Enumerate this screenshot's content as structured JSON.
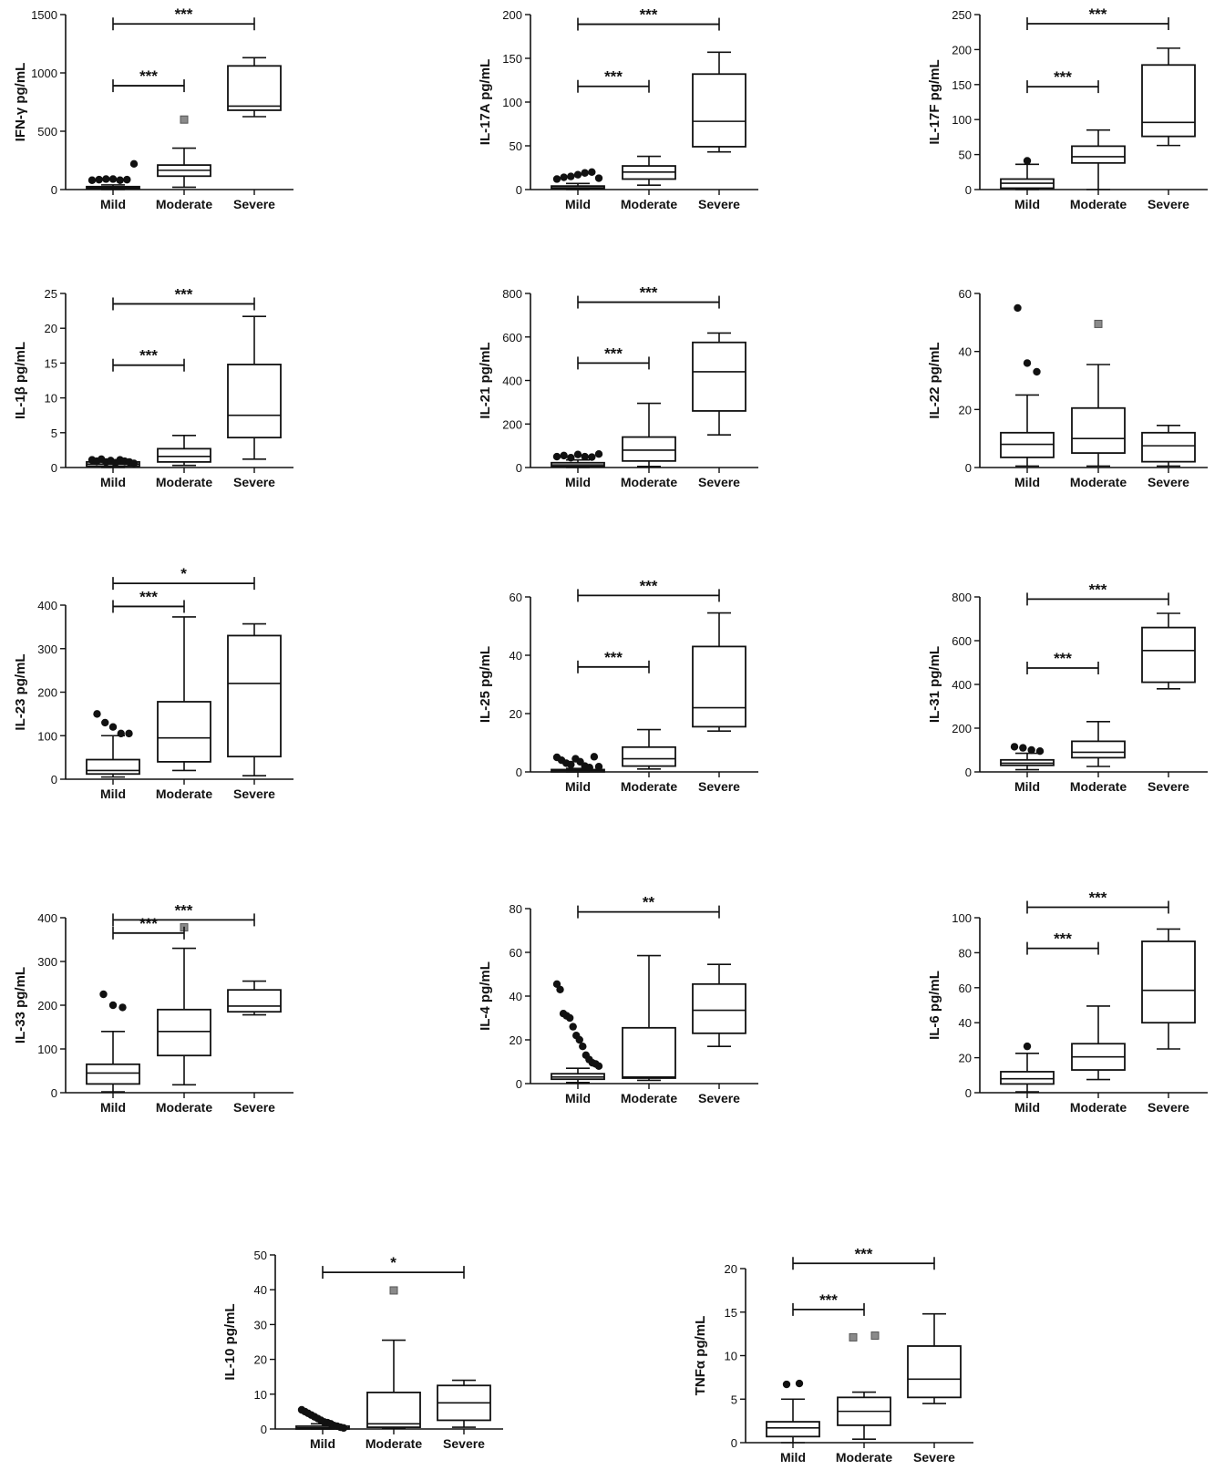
{
  "chart_data": [
    {
      "type": "box",
      "ylabel": "IFN-γ pg/mL",
      "categories": [
        "Mild",
        "Moderate",
        "Severe"
      ],
      "ylim": [
        0,
        1500
      ],
      "yticks": [
        0,
        500,
        1000,
        1500
      ],
      "boxes": [
        {
          "whisker_low": 0,
          "q1": 5,
          "median": 15,
          "q3": 25,
          "whisker_high": 40
        },
        {
          "whisker_low": 20,
          "q1": 115,
          "median": 165,
          "q3": 210,
          "whisker_high": 355
        },
        {
          "whisker_low": 625,
          "q1": 680,
          "median": 715,
          "q3": 1060,
          "whisker_high": 1130
        }
      ],
      "outliers": [
        {
          "cat": 0,
          "values": [
            80,
            85,
            90,
            90,
            80,
            85,
            220
          ],
          "marker": "circle"
        },
        {
          "cat": 1,
          "values": [
            600
          ],
          "marker": "square"
        }
      ],
      "brackets": [
        {
          "from": 0,
          "to": 2,
          "y": 1420,
          "label": "***"
        },
        {
          "from": 0,
          "to": 1,
          "y": 890,
          "label": "***"
        }
      ]
    },
    {
      "type": "box",
      "ylabel": "IL-17A pg/mL",
      "categories": [
        "Mild",
        "Moderate",
        "Severe"
      ],
      "ylim": [
        0,
        200
      ],
      "yticks": [
        0,
        50,
        100,
        150,
        200
      ],
      "boxes": [
        {
          "whisker_low": 0,
          "q1": 1,
          "median": 2,
          "q3": 4,
          "whisker_high": 7
        },
        {
          "whisker_low": 5,
          "q1": 12,
          "median": 20,
          "q3": 27,
          "whisker_high": 38
        },
        {
          "whisker_low": 43,
          "q1": 49,
          "median": 78,
          "q3": 132,
          "whisker_high": 157
        }
      ],
      "outliers": [
        {
          "cat": 0,
          "values": [
            12,
            14,
            15,
            17,
            19,
            20,
            13
          ],
          "marker": "circle"
        }
      ],
      "brackets": [
        {
          "from": 0,
          "to": 2,
          "y": 189,
          "label": "***"
        },
        {
          "from": 0,
          "to": 1,
          "y": 118,
          "label": "***"
        }
      ]
    },
    {
      "type": "box",
      "ylabel": "IL-17F pg/mL",
      "categories": [
        "Mild",
        "Moderate",
        "Severe"
      ],
      "ylim": [
        0,
        250
      ],
      "yticks": [
        0,
        50,
        100,
        150,
        200,
        250
      ],
      "boxes": [
        {
          "whisker_low": 0,
          "q1": 2,
          "median": 9,
          "q3": 15,
          "whisker_high": 36
        },
        {
          "whisker_low": 0,
          "q1": 38,
          "median": 47,
          "q3": 62,
          "whisker_high": 85
        },
        {
          "whisker_low": 63,
          "q1": 76,
          "median": 96,
          "q3": 178,
          "whisker_high": 202
        }
      ],
      "outliers": [
        {
          "cat": 0,
          "values": [
            41
          ],
          "marker": "circle"
        }
      ],
      "brackets": [
        {
          "from": 0,
          "to": 2,
          "y": 237,
          "label": "***"
        },
        {
          "from": 0,
          "to": 1,
          "y": 147,
          "label": "***"
        }
      ]
    },
    {
      "type": "box",
      "ylabel": "IL-1β pg/mL",
      "categories": [
        "Mild",
        "Moderate",
        "Severe"
      ],
      "ylim": [
        0,
        25
      ],
      "yticks": [
        0,
        5,
        10,
        15,
        20,
        25
      ],
      "boxes": [
        {
          "whisker_low": 0,
          "q1": 0.2,
          "median": 0.5,
          "q3": 0.8,
          "whisker_high": 1.0
        },
        {
          "whisker_low": 0.3,
          "q1": 0.8,
          "median": 1.6,
          "q3": 2.7,
          "whisker_high": 4.6
        },
        {
          "whisker_low": 1.2,
          "q1": 4.3,
          "median": 7.5,
          "q3": 14.8,
          "whisker_high": 21.7
        }
      ],
      "outliers": [
        {
          "cat": 0,
          "values": [
            1.1,
            0.9,
            1.2,
            0.8,
            1.0,
            0.7,
            1.1,
            0.9,
            0.8,
            0.6
          ],
          "marker": "circle"
        }
      ],
      "brackets": [
        {
          "from": 0,
          "to": 2,
          "y": 23.5,
          "label": "***"
        },
        {
          "from": 0,
          "to": 1,
          "y": 14.7,
          "label": "***"
        }
      ]
    },
    {
      "type": "box",
      "ylabel": "IL-21 pg/mL",
      "categories": [
        "Mild",
        "Moderate",
        "Severe"
      ],
      "ylim": [
        0,
        800
      ],
      "yticks": [
        0,
        200,
        400,
        600,
        800
      ],
      "boxes": [
        {
          "whisker_low": 0,
          "q1": 5,
          "median": 12,
          "q3": 22,
          "whisker_high": 35
        },
        {
          "whisker_low": 5,
          "q1": 30,
          "median": 80,
          "q3": 140,
          "whisker_high": 295
        },
        {
          "whisker_low": 150,
          "q1": 260,
          "median": 440,
          "q3": 575,
          "whisker_high": 618
        }
      ],
      "outliers": [
        {
          "cat": 0,
          "values": [
            50,
            55,
            45,
            60,
            50,
            48,
            62
          ],
          "marker": "circle"
        }
      ],
      "brackets": [
        {
          "from": 0,
          "to": 2,
          "y": 760,
          "label": "***"
        },
        {
          "from": 0,
          "to": 1,
          "y": 480,
          "label": "***"
        }
      ]
    },
    {
      "type": "box",
      "ylabel": "IL-22 pg/mL",
      "categories": [
        "Mild",
        "Moderate",
        "Severe"
      ],
      "ylim": [
        0,
        60
      ],
      "yticks": [
        0,
        20,
        40,
        60
      ],
      "boxes": [
        {
          "whisker_low": 0.5,
          "q1": 3.5,
          "median": 8,
          "q3": 12,
          "whisker_high": 25
        },
        {
          "whisker_low": 0.5,
          "q1": 5,
          "median": 10,
          "q3": 20.5,
          "whisker_high": 35.5
        },
        {
          "whisker_low": 0.5,
          "q1": 2,
          "median": 7.5,
          "q3": 12,
          "whisker_high": 14.5
        }
      ],
      "outliers": [
        {
          "cat": 0,
          "values": [
            55,
            36,
            33
          ],
          "marker": "circle"
        },
        {
          "cat": 1,
          "values": [
            49.5
          ],
          "marker": "square"
        }
      ],
      "brackets": []
    },
    {
      "type": "box",
      "ylabel": "IL-23 pg/mL",
      "categories": [
        "Mild",
        "Moderate",
        "Severe"
      ],
      "ylim": [
        0,
        400
      ],
      "yticks": [
        0,
        100,
        200,
        300,
        400
      ],
      "boxes": [
        {
          "whisker_low": 5,
          "q1": 12,
          "median": 20,
          "q3": 45,
          "whisker_high": 100
        },
        {
          "whisker_low": 20,
          "q1": 40,
          "median": 95,
          "q3": 178,
          "whisker_high": 373
        },
        {
          "whisker_low": 8,
          "q1": 52,
          "median": 220,
          "q3": 330,
          "whisker_high": 357
        }
      ],
      "outliers": [
        {
          "cat": 0,
          "values": [
            150,
            130,
            120,
            105,
            105
          ],
          "marker": "circle"
        }
      ],
      "brackets": [
        {
          "from": 0,
          "to": 2,
          "y": 450,
          "label": "*"
        },
        {
          "from": 0,
          "to": 1,
          "y": 397,
          "label": "***"
        }
      ]
    },
    {
      "type": "box",
      "ylabel": "IL-25 pg/mL",
      "categories": [
        "Mild",
        "Moderate",
        "Severe"
      ],
      "ylim": [
        0,
        60
      ],
      "yticks": [
        0,
        20,
        40,
        60
      ],
      "boxes": [
        {
          "whisker_low": 0,
          "q1": 0.2,
          "median": 0.5,
          "q3": 0.8,
          "whisker_high": 1.2
        },
        {
          "whisker_low": 1,
          "q1": 2,
          "median": 4.5,
          "q3": 8.5,
          "whisker_high": 14.5
        },
        {
          "whisker_low": 14,
          "q1": 15.5,
          "median": 22,
          "q3": 43,
          "whisker_high": 54.5
        }
      ],
      "outliers": [
        {
          "cat": 0,
          "values": [
            5,
            4,
            3,
            2.5,
            4.5,
            3.5,
            2,
            1.5,
            5.2,
            1.8
          ],
          "marker": "circle"
        }
      ],
      "brackets": [
        {
          "from": 0,
          "to": 2,
          "y": 60.5,
          "label": "***"
        },
        {
          "from": 0,
          "to": 1,
          "y": 36,
          "label": "***"
        }
      ]
    },
    {
      "type": "box",
      "ylabel": "IL-31 pg/mL",
      "categories": [
        "Mild",
        "Moderate",
        "Severe"
      ],
      "ylim": [
        0,
        800
      ],
      "yticks": [
        0,
        200,
        400,
        600,
        800
      ],
      "boxes": [
        {
          "whisker_low": 10,
          "q1": 30,
          "median": 40,
          "q3": 55,
          "whisker_high": 85
        },
        {
          "whisker_low": 25,
          "q1": 65,
          "median": 90,
          "q3": 140,
          "whisker_high": 230
        },
        {
          "whisker_low": 380,
          "q1": 410,
          "median": 555,
          "q3": 660,
          "whisker_high": 725
        }
      ],
      "outliers": [
        {
          "cat": 0,
          "values": [
            115,
            110,
            100,
            95
          ],
          "marker": "circle"
        }
      ],
      "brackets": [
        {
          "from": 0,
          "to": 2,
          "y": 790,
          "label": "***"
        },
        {
          "from": 0,
          "to": 1,
          "y": 475,
          "label": "***"
        }
      ]
    },
    {
      "type": "box",
      "ylabel": "IL-33 pg/mL",
      "categories": [
        "Mild",
        "Moderate",
        "Severe"
      ],
      "ylim": [
        0,
        400
      ],
      "yticks": [
        0,
        100,
        200,
        300,
        400
      ],
      "boxes": [
        {
          "whisker_low": 2,
          "q1": 20,
          "median": 45,
          "q3": 65,
          "whisker_high": 140
        },
        {
          "whisker_low": 18,
          "q1": 85,
          "median": 140,
          "q3": 190,
          "whisker_high": 330
        },
        {
          "whisker_low": 178,
          "q1": 185,
          "median": 198,
          "q3": 235,
          "whisker_high": 255
        }
      ],
      "outliers": [
        {
          "cat": 0,
          "values": [
            225,
            200,
            195
          ],
          "marker": "circle"
        },
        {
          "cat": 1,
          "values": [
            378
          ],
          "marker": "square"
        }
      ],
      "brackets": [
        {
          "from": 0,
          "to": 2,
          "y": 395,
          "label": "***"
        },
        {
          "from": 0,
          "to": 1,
          "y": 365,
          "label": "***"
        }
      ]
    },
    {
      "type": "box",
      "ylabel": "IL-4 pg/mL",
      "categories": [
        "Mild",
        "Moderate",
        "Severe"
      ],
      "ylim": [
        0,
        80
      ],
      "yticks": [
        0,
        20,
        40,
        60,
        80
      ],
      "boxes": [
        {
          "whisker_low": 0.5,
          "q1": 2,
          "median": 3,
          "q3": 4.5,
          "whisker_high": 7
        },
        {
          "whisker_low": 1.5,
          "q1": 2.5,
          "median": 3,
          "q3": 25.5,
          "whisker_high": 58.5
        },
        {
          "whisker_low": 17,
          "q1": 23,
          "median": 33.5,
          "q3": 45.5,
          "whisker_high": 54.5
        }
      ],
      "outliers": [
        {
          "cat": 0,
          "values": [
            45.5,
            43,
            32,
            31,
            30,
            26,
            22,
            20,
            17,
            13,
            11,
            9.5,
            9,
            8
          ],
          "marker": "circle"
        }
      ],
      "brackets": [
        {
          "from": 0,
          "to": 2,
          "y": 78.5,
          "label": "**"
        }
      ]
    },
    {
      "type": "box",
      "ylabel": "IL-6 pg/mL",
      "categories": [
        "Mild",
        "Moderate",
        "Severe"
      ],
      "ylim": [
        0,
        100
      ],
      "yticks": [
        0,
        20,
        40,
        60,
        80,
        100
      ],
      "boxes": [
        {
          "whisker_low": 0.5,
          "q1": 5,
          "median": 8,
          "q3": 12,
          "whisker_high": 22.5
        },
        {
          "whisker_low": 7.5,
          "q1": 13,
          "median": 20.5,
          "q3": 28,
          "whisker_high": 49.5
        },
        {
          "whisker_low": 25,
          "q1": 40,
          "median": 58.5,
          "q3": 86.5,
          "whisker_high": 93.5
        }
      ],
      "outliers": [
        {
          "cat": 0,
          "values": [
            26.5
          ],
          "marker": "circle"
        }
      ],
      "brackets": [
        {
          "from": 0,
          "to": 2,
          "y": 106,
          "label": "***"
        },
        {
          "from": 0,
          "to": 1,
          "y": 82.5,
          "label": "***"
        }
      ]
    },
    {
      "type": "box",
      "ylabel": "IL-10 pg/mL",
      "categories": [
        "Mild",
        "Moderate",
        "Severe"
      ],
      "ylim": [
        0,
        50
      ],
      "yticks": [
        0,
        10,
        20,
        30,
        40,
        50
      ],
      "boxes": [
        {
          "whisker_low": 0,
          "q1": 0,
          "median": 0.3,
          "q3": 0.8,
          "whisker_high": 1.5
        },
        {
          "whisker_low": 0.2,
          "q1": 0.5,
          "median": 1.5,
          "q3": 10.5,
          "whisker_high": 25.5
        },
        {
          "whisker_low": 0.5,
          "q1": 2.5,
          "median": 7.5,
          "q3": 12.5,
          "whisker_high": 14
        }
      ],
      "outliers": [
        {
          "cat": 0,
          "values": [
            5.5,
            5,
            4.5,
            4,
            3.5,
            3,
            2.5,
            2,
            1.8,
            1.5,
            1,
            0.8,
            0.5,
            0.3
          ],
          "marker": "circle"
        },
        {
          "cat": 1,
          "values": [
            39.8
          ],
          "marker": "square"
        }
      ],
      "brackets": [
        {
          "from": 0,
          "to": 2,
          "y": 45,
          "label": "*"
        }
      ]
    },
    {
      "type": "box",
      "ylabel": "TNFα pg/mL",
      "categories": [
        "Mild",
        "Moderate",
        "Severe"
      ],
      "ylim": [
        0,
        20
      ],
      "yticks": [
        0,
        5,
        10,
        15,
        20
      ],
      "boxes": [
        {
          "whisker_low": 0,
          "q1": 0.7,
          "median": 1.7,
          "q3": 2.4,
          "whisker_high": 5.0
        },
        {
          "whisker_low": 0.4,
          "q1": 2.0,
          "median": 3.6,
          "q3": 5.2,
          "whisker_high": 5.8
        },
        {
          "whisker_low": 4.5,
          "q1": 5.2,
          "median": 7.3,
          "q3": 11.1,
          "whisker_high": 14.8
        }
      ],
      "outliers": [
        {
          "cat": 0,
          "values": [
            6.7,
            6.8
          ],
          "marker": "circle"
        },
        {
          "cat": 1,
          "values": [
            12.1,
            12.3
          ],
          "marker": "square"
        }
      ],
      "brackets": [
        {
          "from": 0,
          "to": 2,
          "y": 20.6,
          "label": "***"
        },
        {
          "from": 0,
          "to": 1,
          "y": 15.3,
          "label": "***"
        }
      ]
    }
  ]
}
